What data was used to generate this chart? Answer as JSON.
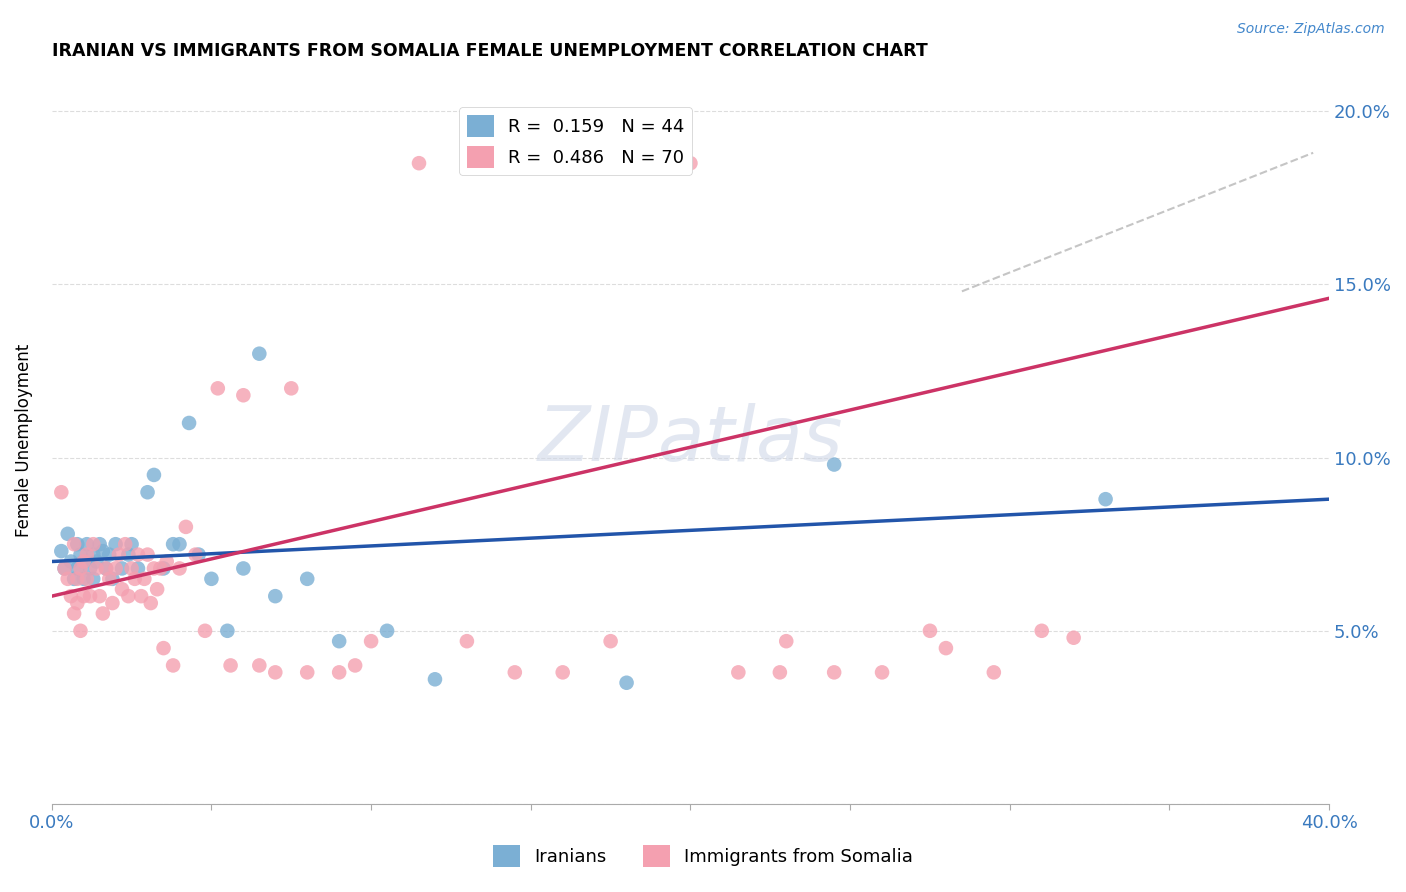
{
  "title": "IRANIAN VS IMMIGRANTS FROM SOMALIA FEMALE UNEMPLOYMENT CORRELATION CHART",
  "source": "Source: ZipAtlas.com",
  "ylabel": "Female Unemployment",
  "watermark": "ZIPatlas",
  "xlim": [
    0.0,
    0.4
  ],
  "ylim": [
    0.0,
    0.21
  ],
  "xticks": [
    0.0,
    0.05,
    0.1,
    0.15,
    0.2,
    0.25,
    0.3,
    0.35,
    0.4
  ],
  "xticklabels": [
    "0.0%",
    "",
    "",
    "",
    "",
    "",
    "",
    "",
    "40.0%"
  ],
  "yticks": [
    0.0,
    0.05,
    0.1,
    0.15,
    0.2
  ],
  "yticklabels": [
    "",
    "5.0%",
    "10.0%",
    "15.0%",
    "20.0%"
  ],
  "legend1_label": "R =  0.159   N = 44",
  "legend2_label": "R =  0.486   N = 70",
  "series1_color": "#7bafd4",
  "series2_color": "#f4a0b0",
  "line1_color": "#2255aa",
  "line2_color": "#cc3366",
  "series1_name": "Iranians",
  "series2_name": "Immigrants from Somalia",
  "iranians_x": [
    0.003,
    0.004,
    0.005,
    0.006,
    0.007,
    0.008,
    0.008,
    0.009,
    0.01,
    0.01,
    0.011,
    0.012,
    0.013,
    0.013,
    0.014,
    0.015,
    0.016,
    0.017,
    0.018,
    0.019,
    0.02,
    0.022,
    0.024,
    0.025,
    0.027,
    0.03,
    0.032,
    0.035,
    0.038,
    0.04,
    0.043,
    0.046,
    0.05,
    0.055,
    0.06,
    0.065,
    0.07,
    0.08,
    0.09,
    0.105,
    0.12,
    0.18,
    0.245,
    0.33
  ],
  "iranians_y": [
    0.073,
    0.068,
    0.078,
    0.07,
    0.065,
    0.075,
    0.068,
    0.072,
    0.065,
    0.07,
    0.075,
    0.068,
    0.072,
    0.065,
    0.07,
    0.075,
    0.073,
    0.068,
    0.072,
    0.065,
    0.075,
    0.068,
    0.072,
    0.075,
    0.068,
    0.09,
    0.095,
    0.068,
    0.075,
    0.075,
    0.11,
    0.072,
    0.065,
    0.05,
    0.068,
    0.13,
    0.06,
    0.065,
    0.047,
    0.05,
    0.036,
    0.035,
    0.098,
    0.088
  ],
  "somalia_x": [
    0.003,
    0.004,
    0.005,
    0.006,
    0.007,
    0.007,
    0.008,
    0.008,
    0.009,
    0.009,
    0.01,
    0.01,
    0.011,
    0.011,
    0.012,
    0.013,
    0.014,
    0.015,
    0.016,
    0.017,
    0.018,
    0.019,
    0.02,
    0.021,
    0.022,
    0.023,
    0.024,
    0.025,
    0.026,
    0.027,
    0.028,
    0.029,
    0.03,
    0.031,
    0.032,
    0.033,
    0.034,
    0.035,
    0.036,
    0.038,
    0.04,
    0.042,
    0.045,
    0.048,
    0.052,
    0.056,
    0.06,
    0.065,
    0.07,
    0.075,
    0.08,
    0.09,
    0.095,
    0.1,
    0.115,
    0.13,
    0.145,
    0.16,
    0.175,
    0.2,
    0.215,
    0.228,
    0.23,
    0.245,
    0.26,
    0.275,
    0.28,
    0.295,
    0.31,
    0.32
  ],
  "somalia_y": [
    0.09,
    0.068,
    0.065,
    0.06,
    0.075,
    0.055,
    0.058,
    0.065,
    0.068,
    0.05,
    0.06,
    0.07,
    0.065,
    0.072,
    0.06,
    0.075,
    0.068,
    0.06,
    0.055,
    0.068,
    0.065,
    0.058,
    0.068,
    0.072,
    0.062,
    0.075,
    0.06,
    0.068,
    0.065,
    0.072,
    0.06,
    0.065,
    0.072,
    0.058,
    0.068,
    0.062,
    0.068,
    0.045,
    0.07,
    0.04,
    0.068,
    0.08,
    0.072,
    0.05,
    0.12,
    0.04,
    0.118,
    0.04,
    0.038,
    0.12,
    0.038,
    0.038,
    0.04,
    0.047,
    0.185,
    0.047,
    0.038,
    0.038,
    0.047,
    0.185,
    0.038,
    0.038,
    0.047,
    0.038,
    0.038,
    0.05,
    0.045,
    0.038,
    0.05,
    0.048
  ]
}
